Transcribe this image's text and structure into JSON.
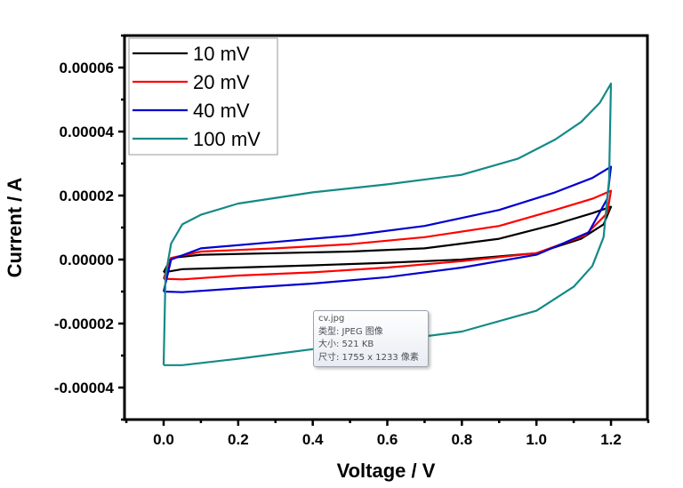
{
  "chart_data": {
    "type": "line",
    "title": "",
    "xlabel": "Voltage / V",
    "ylabel": "Current / A",
    "xlim": [
      -0.1,
      1.3
    ],
    "ylim": [
      -5e-05,
      7e-05
    ],
    "xticks": [
      0.0,
      0.2,
      0.4,
      0.6,
      0.8,
      1.0,
      1.2
    ],
    "xtick_labels": [
      "0.0",
      "0.2",
      "0.4",
      "0.6",
      "0.8",
      "1.0",
      "1.2"
    ],
    "yticks": [
      6e-05,
      4e-05,
      2e-05,
      0.0,
      -2e-05,
      -4e-05
    ],
    "ytick_labels": [
      "0.00006",
      "0.00004",
      "0.00002",
      "0.00000",
      "-0.00002",
      "-0.00004"
    ],
    "grid": false,
    "legend_position": "top-left",
    "series": [
      {
        "name": "10 mV",
        "color": "#000000",
        "x": [
          0.0,
          0.02,
          0.1,
          0.3,
          0.5,
          0.7,
          0.9,
          1.05,
          1.15,
          1.2,
          1.18,
          1.12,
          1.0,
          0.8,
          0.6,
          0.4,
          0.2,
          0.05,
          0.0
        ],
        "y": [
          -4e-06,
          5e-07,
          1.5e-06,
          2e-06,
          2.5e-06,
          3.5e-06,
          6.5e-06,
          1.1e-05,
          1.45e-05,
          1.65e-05,
          1.1e-05,
          6.5e-06,
          2e-06,
          0.0,
          -1e-06,
          -1.8e-06,
          -2.5e-06,
          -3e-06,
          -4e-06
        ]
      },
      {
        "name": "20 mV",
        "color": "#ff0000",
        "x": [
          0.0,
          0.02,
          0.1,
          0.3,
          0.5,
          0.7,
          0.9,
          1.05,
          1.15,
          1.2,
          1.19,
          1.13,
          1.0,
          0.8,
          0.6,
          0.4,
          0.2,
          0.05,
          0.0
        ],
        "y": [
          -6e-06,
          5e-07,
          2.5e-06,
          3.5e-06,
          4.8e-06,
          7e-06,
          1.05e-05,
          1.55e-05,
          1.9e-05,
          2.15e-05,
          1.45e-05,
          7.5e-06,
          2e-06,
          -5e-07,
          -2.5e-06,
          -4e-06,
          -5e-06,
          -6.2e-06,
          -6e-06
        ]
      },
      {
        "name": "40 mV",
        "color": "#0000d0",
        "x": [
          0.0,
          0.02,
          0.1,
          0.3,
          0.5,
          0.7,
          0.9,
          1.05,
          1.15,
          1.2,
          1.19,
          1.14,
          1.0,
          0.8,
          0.6,
          0.4,
          0.2,
          0.05,
          0.0
        ],
        "y": [
          -1e-05,
          0.0,
          3.5e-06,
          5.5e-06,
          7.5e-06,
          1.05e-05,
          1.55e-05,
          2.1e-05,
          2.55e-05,
          2.9e-05,
          1.9e-05,
          8.5e-06,
          1.5e-06,
          -2.5e-06,
          -5.5e-06,
          -7.5e-06,
          -9e-06,
          -1.02e-05,
          -1e-05
        ]
      },
      {
        "name": "100 mV",
        "color": "#138a87",
        "x": [
          0.0,
          0.005,
          0.02,
          0.05,
          0.1,
          0.2,
          0.4,
          0.6,
          0.8,
          0.95,
          1.05,
          1.12,
          1.17,
          1.2,
          1.195,
          1.18,
          1.15,
          1.1,
          1.0,
          0.8,
          0.6,
          0.4,
          0.2,
          0.05,
          0.0
        ],
        "y": [
          -3.3e-05,
          -5e-06,
          5e-06,
          1.1e-05,
          1.4e-05,
          1.75e-05,
          2.1e-05,
          2.35e-05,
          2.65e-05,
          3.15e-05,
          3.75e-05,
          4.3e-05,
          4.9e-05,
          5.5e-05,
          2.5e-05,
          7e-06,
          -2e-06,
          -8.5e-06,
          -1.6e-05,
          -2.25e-05,
          -2.55e-05,
          -2.8e-05,
          -3.1e-05,
          -3.3e-05,
          -3.3e-05
        ]
      }
    ]
  },
  "tooltip": {
    "filename": "cv.jpg",
    "type_line": "类型: JPEG 图像",
    "size_line": "大小: 521 KB",
    "dimensions_line": "尺寸: 1755 x 1233 像素"
  }
}
